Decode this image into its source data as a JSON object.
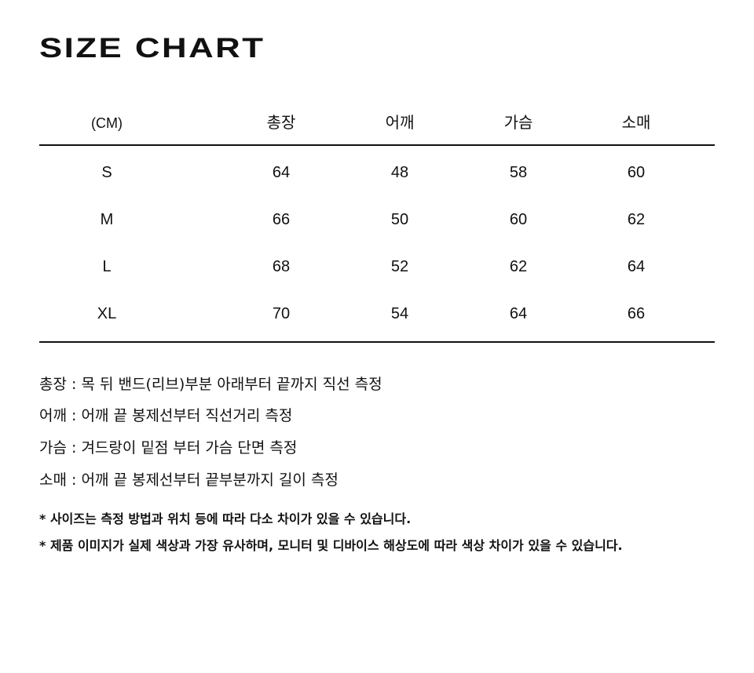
{
  "title": "SIZE CHART",
  "table": {
    "headers": [
      "(CM)",
      "총장",
      "어깨",
      "가슴",
      "소매"
    ],
    "rows": [
      [
        "S",
        "64",
        "48",
        "58",
        "60"
      ],
      [
        "M",
        "66",
        "50",
        "60",
        "62"
      ],
      [
        "L",
        "68",
        "52",
        "62",
        "64"
      ],
      [
        "XL",
        "70",
        "54",
        "64",
        "66"
      ]
    ]
  },
  "descriptions": [
    "총장 : 목 뒤 밴드(리브)부분 아래부터 끝까지 직선 측정",
    "어깨 : 어깨 끝 봉제선부터 직선거리 측정",
    "가슴 : 겨드랑이 밑점 부터 가슴 단면 측정",
    "소매 : 어깨 끝 봉제선부터 끝부분까지 길이 측정"
  ],
  "notes": [
    "* 사이즈는 측정 방법과 위치 등에 따라 다소 차이가 있을 수 있습니다.",
    "* 제품 이미지가 실제 색상과 가장 유사하며, 모니터 및 디바이스 해상도에 따라 색상 차이가 있을 수 있습니다."
  ]
}
